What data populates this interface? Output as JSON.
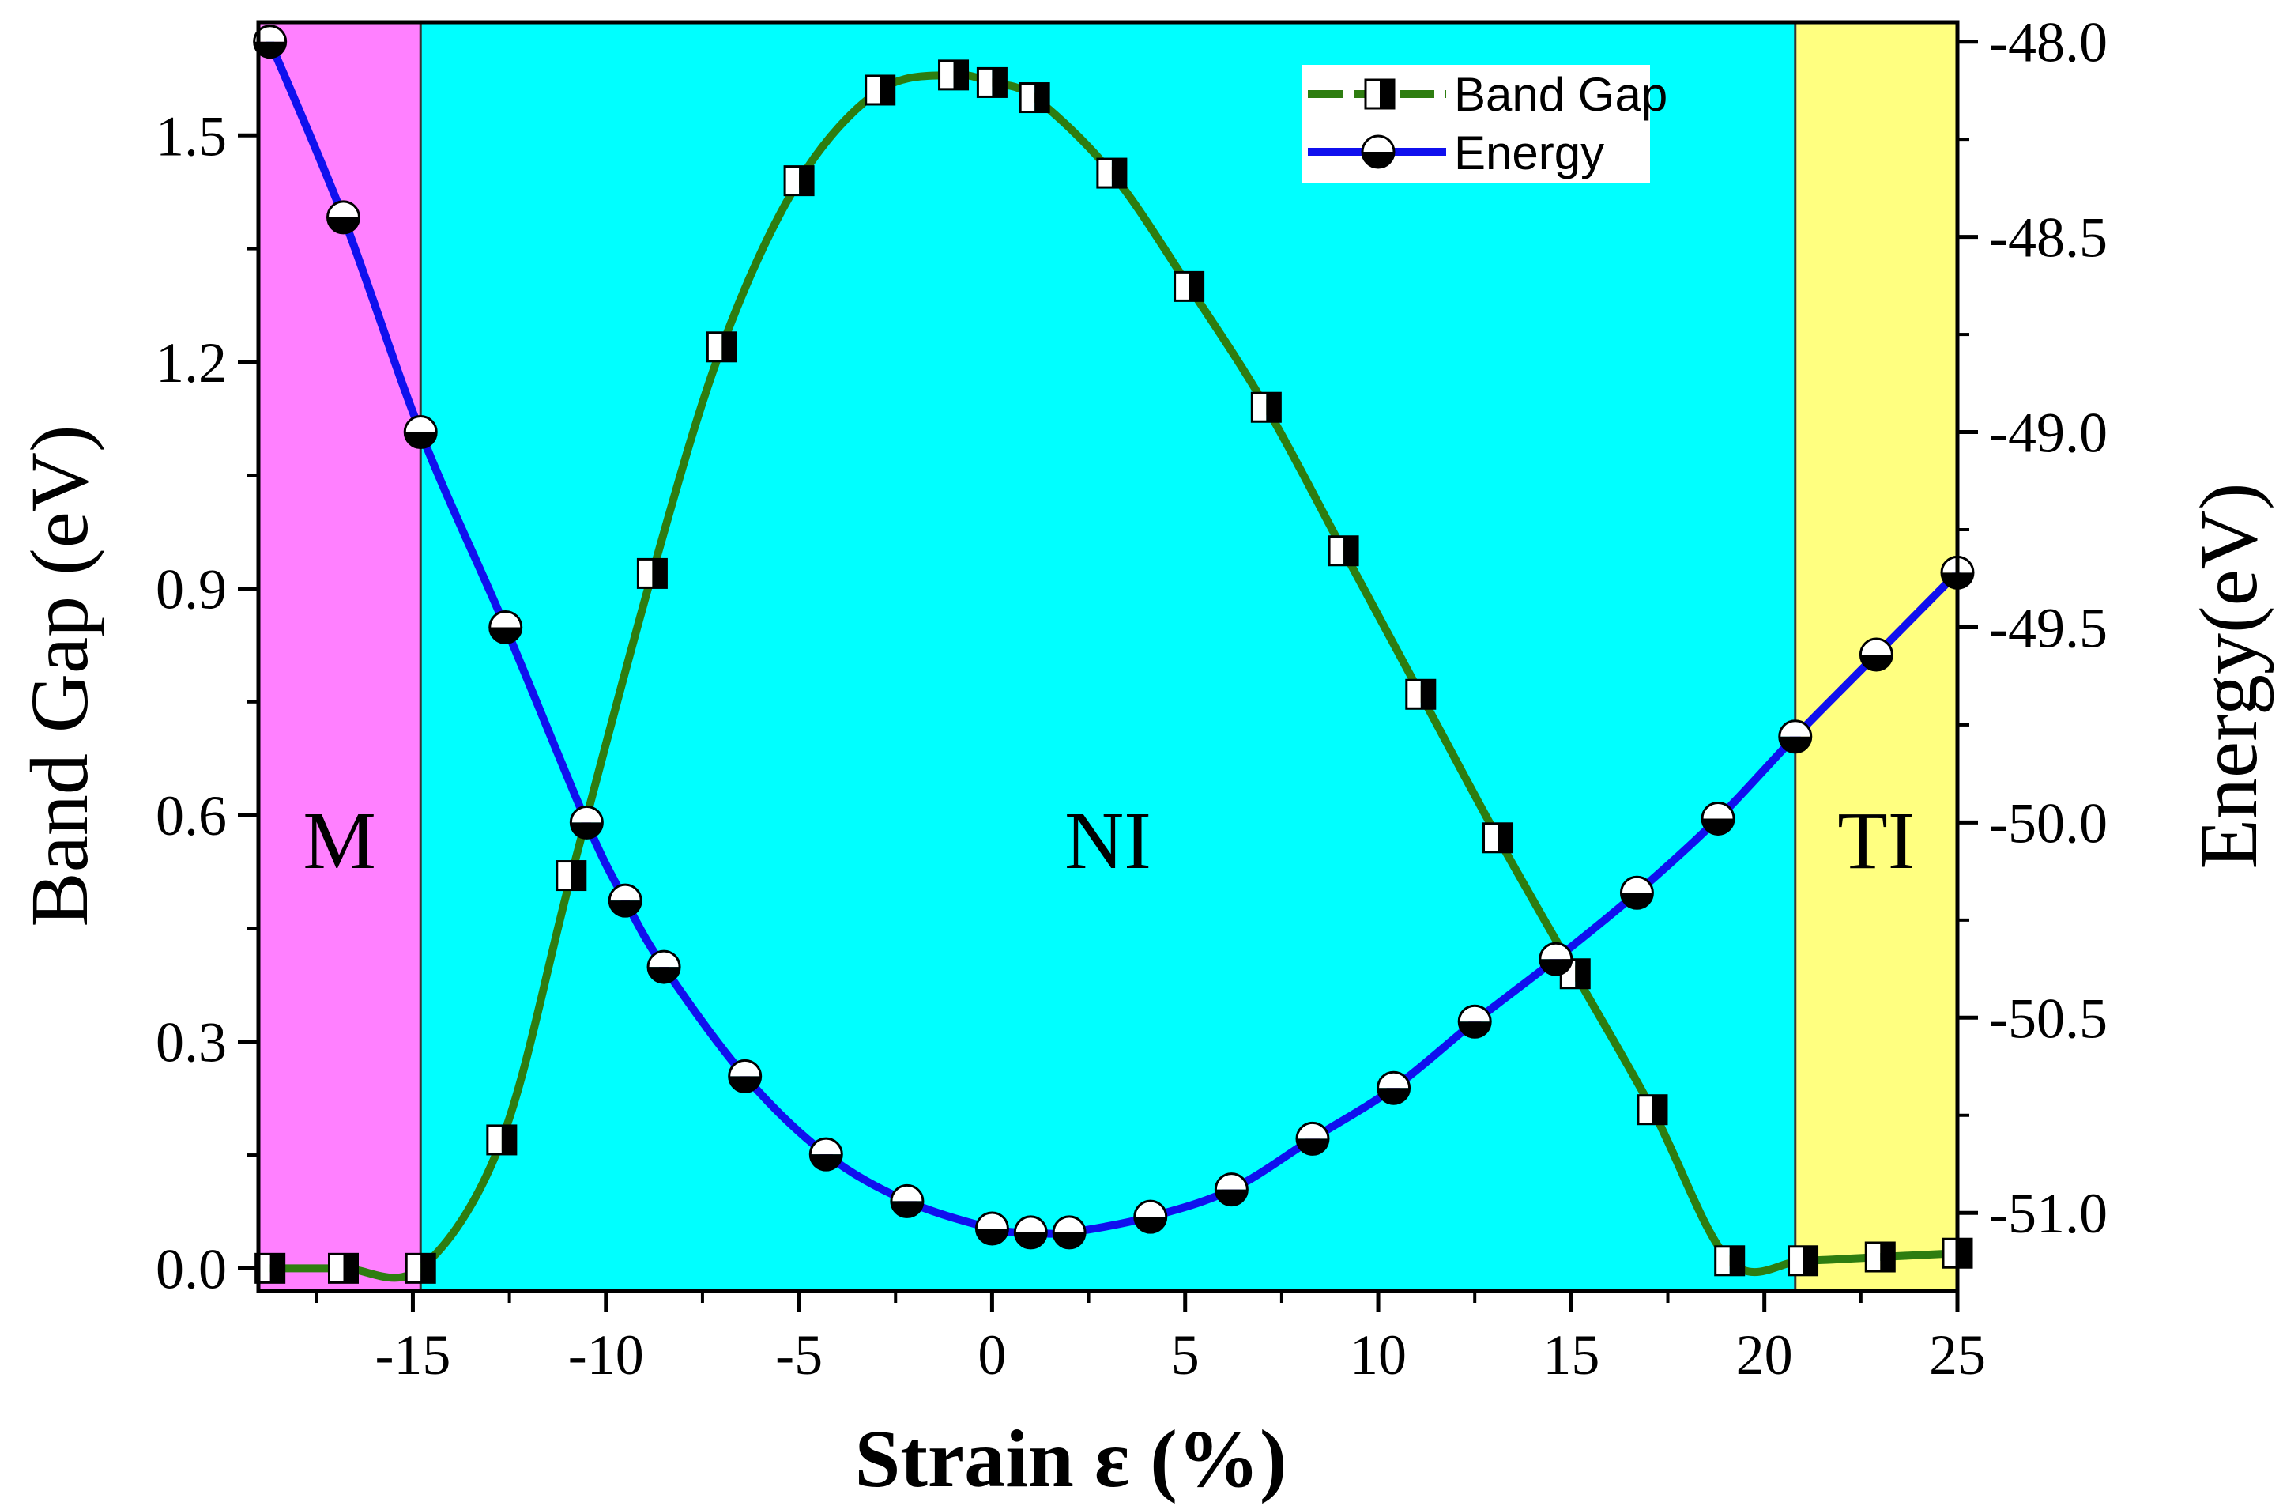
{
  "chart_data": {
    "type": "line",
    "title": "",
    "xlabel": "Strain ε (%)",
    "ylabel_left": "Band Gap (eV)",
    "ylabel_right": "Energy(eV)",
    "xlim": [
      -19,
      25
    ],
    "ylim_left": [
      -0.03,
      1.65
    ],
    "ylim_right": [
      -51.2,
      -47.95
    ],
    "x_ticks": [
      -15,
      -10,
      -5,
      0,
      5,
      10,
      15,
      20,
      25
    ],
    "x_tick_labels": [
      "-15",
      "-10",
      "-5",
      "0",
      "5",
      "10",
      "15",
      "20",
      "25"
    ],
    "y_left_ticks": [
      0.0,
      0.3,
      0.6,
      0.9,
      1.2,
      1.5
    ],
    "y_left_tick_labels": [
      "0.0",
      "0.3",
      "0.6",
      "0.9",
      "1.2",
      "1.5"
    ],
    "y_right_ticks": [
      -48.0,
      -48.5,
      -49.0,
      -49.5,
      -50.0,
      -50.5,
      -51.0
    ],
    "y_right_tick_labels": [
      "-48.0",
      "-48.5",
      "-49.0",
      "-49.5",
      "-50.0",
      "-50.5",
      "-51.0"
    ],
    "regions": [
      {
        "label": "M",
        "x_start": -19,
        "x_end": -14.8,
        "color": "#ff80ff"
      },
      {
        "label": "NI",
        "x_start": -14.8,
        "x_end": 20.8,
        "color": "#00ffff"
      },
      {
        "label": "TI",
        "x_start": 20.8,
        "x_end": 25,
        "color": "#ffff80"
      }
    ],
    "series": [
      {
        "name": "Band Gap",
        "axis": "left",
        "color": "#2e7d10",
        "marker": "half-filled-square",
        "x": [
          -18.7,
          -16.8,
          -14.8,
          -12.7,
          -10.9,
          -8.8,
          -7.0,
          -5.0,
          -2.9,
          -1.0,
          0.0,
          1.1,
          3.1,
          5.1,
          7.1,
          9.1,
          11.1,
          13.1,
          15.1,
          17.1,
          19.1,
          21.0,
          23.0,
          25.0
        ],
        "values": [
          0.0,
          0.0,
          0.0,
          0.17,
          0.52,
          0.92,
          1.22,
          1.44,
          1.56,
          1.58,
          1.57,
          1.55,
          1.45,
          1.3,
          1.14,
          0.95,
          0.76,
          0.57,
          0.39,
          0.21,
          0.01,
          0.01,
          0.015,
          0.02
        ]
      },
      {
        "name": "Energy",
        "axis": "right",
        "color": "#1010ee",
        "marker": "half-filled-circle",
        "x": [
          -18.7,
          -16.8,
          -14.8,
          -12.6,
          -10.5,
          -9.5,
          -8.5,
          -6.4,
          -4.3,
          -2.2,
          0.0,
          1.0,
          2.0,
          4.1,
          6.2,
          8.3,
          10.4,
          12.5,
          14.6,
          16.7,
          18.8,
          20.8,
          22.9,
          25.0
        ],
        "values": [
          -48.0,
          -48.45,
          -49.0,
          -49.5,
          -50.0,
          -50.2,
          -50.37,
          -50.65,
          -50.85,
          -50.97,
          -51.04,
          -51.05,
          -51.05,
          -51.01,
          -50.94,
          -50.81,
          -50.68,
          -50.51,
          -50.35,
          -50.18,
          -49.99,
          -49.78,
          -49.57,
          -49.36
        ]
      }
    ]
  },
  "legend": {
    "items": [
      {
        "label": "Band Gap",
        "color": "#2e7d10"
      },
      {
        "label": "Energy",
        "color": "#1010ee"
      }
    ]
  }
}
